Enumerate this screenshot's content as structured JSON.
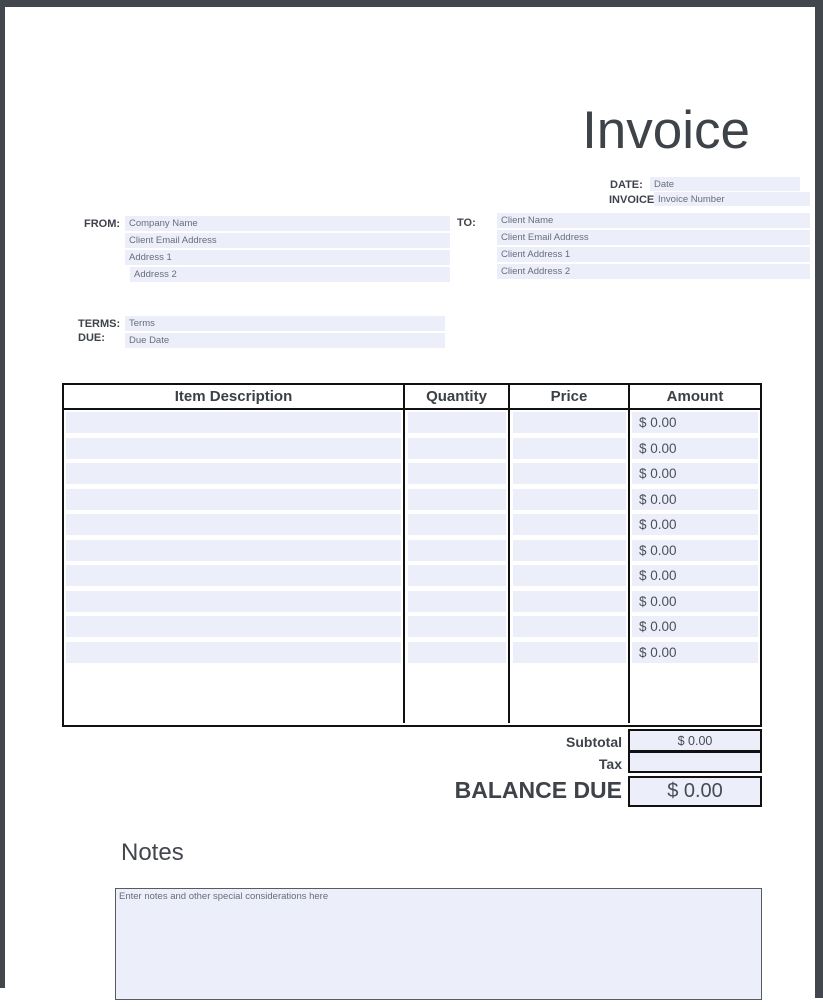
{
  "page": {
    "title": "Invoice"
  },
  "colors": {
    "field_bg": "#eceffa",
    "frame": "#42474d",
    "table_border": "#111111",
    "heading_text": "#3e434a"
  },
  "header_fields": {
    "date_label": "DATE:",
    "date_placeholder": "Date",
    "invoice_label": "INVOICE",
    "invoice_placeholder": "Invoice Number"
  },
  "from": {
    "label": "FROM:",
    "placeholders": [
      "Company Name",
      "Client Email Address",
      "Address 1",
      "Address 2"
    ]
  },
  "to": {
    "label": "TO:",
    "placeholders": [
      "Client Name",
      "Client Email Address",
      "Client Address 1",
      "Client Address 2"
    ]
  },
  "terms": {
    "label": "TERMS:",
    "placeholder": "Terms"
  },
  "due": {
    "label": "DUE:",
    "placeholder": "Due Date"
  },
  "items_table": {
    "headers": [
      "Item Description",
      "Quantity",
      "Price",
      "Amount"
    ],
    "rows": [
      {
        "description": "",
        "quantity": "",
        "price": "",
        "amount": "$ 0.00"
      },
      {
        "description": "",
        "quantity": "",
        "price": "",
        "amount": "$ 0.00"
      },
      {
        "description": "",
        "quantity": "",
        "price": "",
        "amount": "$ 0.00"
      },
      {
        "description": "",
        "quantity": "",
        "price": "",
        "amount": "$ 0.00"
      },
      {
        "description": "",
        "quantity": "",
        "price": "",
        "amount": "$ 0.00"
      },
      {
        "description": "",
        "quantity": "",
        "price": "",
        "amount": "$ 0.00"
      },
      {
        "description": "",
        "quantity": "",
        "price": "",
        "amount": "$ 0.00"
      },
      {
        "description": "",
        "quantity": "",
        "price": "",
        "amount": "$ 0.00"
      },
      {
        "description": "",
        "quantity": "",
        "price": "",
        "amount": "$ 0.00"
      },
      {
        "description": "",
        "quantity": "",
        "price": "",
        "amount": "$ 0.00"
      }
    ]
  },
  "totals": {
    "subtotal_label": "Subtotal",
    "subtotal_value": "$ 0.00",
    "tax_label": "Tax",
    "tax_value": "",
    "balance_label": "BALANCE DUE",
    "balance_value": "$ 0.00"
  },
  "notes": {
    "heading": "Notes",
    "placeholder": "Enter notes and other special considerations here"
  }
}
